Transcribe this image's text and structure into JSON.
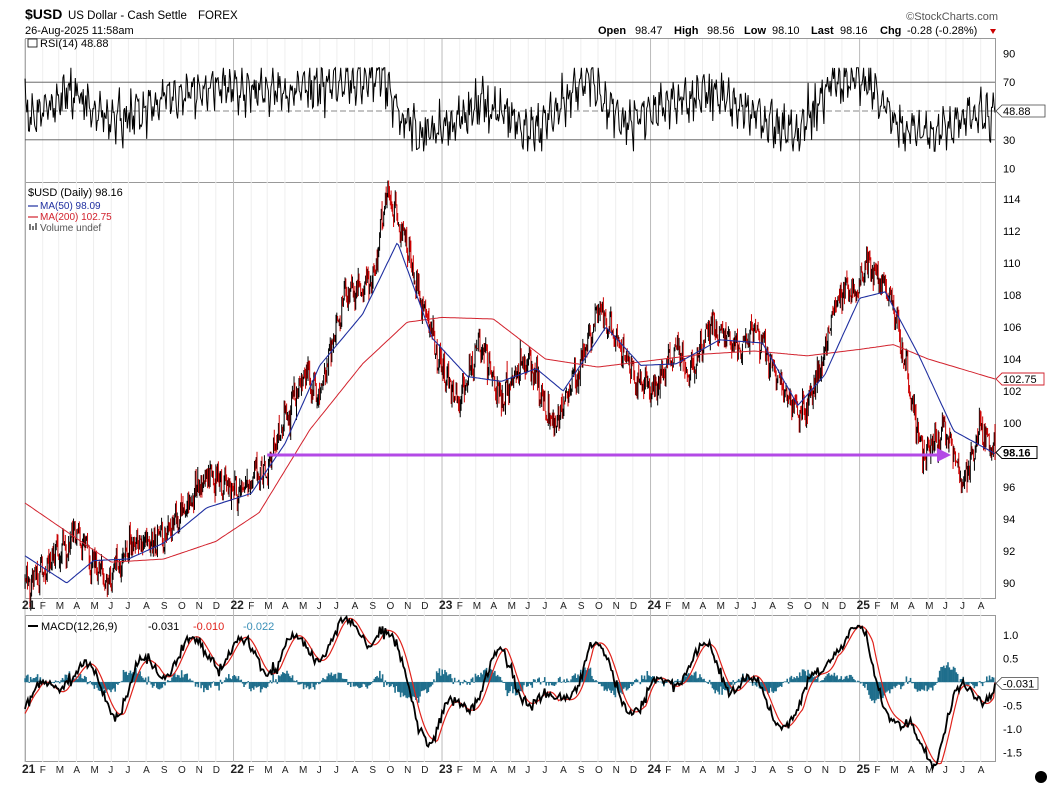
{
  "header": {
    "symbol": "$USD",
    "name": "US Dollar - Cash Settle",
    "exchange": "FOREX",
    "datetime": "26-Aug-2025 11:58am",
    "brand": "©StockCharts.com",
    "open_label": "Open",
    "open": "98.47",
    "high_label": "High",
    "high": "98.56",
    "low_label": "Low",
    "low": "98.10",
    "last_label": "Last",
    "last": "98.16",
    "chg_label": "Chg",
    "chg": "-0.28 (-0.28%)",
    "down_icon": "triangle-down-icon"
  },
  "colors": {
    "price_up": "#000000",
    "price_down": "#cc0000",
    "ma50": "#1f2fa0",
    "ma200": "#d2222d",
    "support_arrow": "#b34ae6",
    "macd": "#000000",
    "macd_signal": "#e0231c",
    "macd_hist": "#1f6e8c",
    "rsi": "#000000"
  },
  "rsi_panel": {
    "legend": "RSI(14) 48.88",
    "current": "48.88",
    "ticks": [
      "90",
      "70",
      "50",
      "30",
      "10"
    ]
  },
  "price_panel": {
    "legend_price": "$USD (Daily) 98.16",
    "legend_ma50": "MA(50) 98.09",
    "legend_ma200": "MA(200) 102.75",
    "legend_volume": "Volume undef",
    "ma200_tag": "102.75",
    "last_tag": "98.16"
  },
  "macd_panel": {
    "legend_name": "MACD(12,26,9)",
    "legend_macd": "-0.031",
    "legend_signal": "-0.010",
    "legend_hist": "-0.022",
    "current": "-0.031",
    "ticks": [
      "1.0",
      "0.5",
      "0.0",
      "-0.5",
      "-1.0",
      "-1.5"
    ]
  },
  "x_axis_labels": [
    "21",
    "F",
    "M",
    "A",
    "M",
    "J",
    "J",
    "A",
    "S",
    "O",
    "N",
    "D",
    "22",
    "F",
    "M",
    "A",
    "M",
    "J",
    "J",
    "A",
    "S",
    "O",
    "N",
    "D",
    "23",
    "F",
    "M",
    "A",
    "M",
    "J",
    "J",
    "A",
    "S",
    "O",
    "N",
    "D",
    "24",
    "F",
    "M",
    "A",
    "M",
    "J",
    "J",
    "A",
    "S",
    "O",
    "N",
    "D",
    "25",
    "F",
    "M",
    "A",
    "M",
    "J",
    "J",
    "A"
  ],
  "chart_data": [
    {
      "type": "line",
      "title": "RSI(14)",
      "ylim": [
        0,
        100
      ],
      "y_ticks": [
        90,
        70,
        50,
        30,
        10
      ],
      "reference_lines": [
        70,
        50,
        30
      ],
      "series": [
        {
          "name": "RSI(14)",
          "x": [
            "2021-01",
            "2021-03",
            "2021-06",
            "2021-09",
            "2021-12",
            "2022-03",
            "2022-06",
            "2022-09",
            "2022-11",
            "2023-01",
            "2023-03",
            "2023-06",
            "2023-09",
            "2023-11",
            "2024-01",
            "2024-04",
            "2024-06",
            "2024-09",
            "2024-11",
            "2025-01",
            "2025-03",
            "2025-05",
            "2025-07",
            "2025-08"
          ],
          "values": [
            48,
            62,
            42,
            60,
            66,
            64,
            68,
            76,
            34,
            40,
            56,
            36,
            74,
            40,
            52,
            64,
            50,
            34,
            72,
            70,
            36,
            34,
            48,
            48.88
          ]
        }
      ],
      "x_range": [
        "2021-01-01",
        "2025-08-26"
      ]
    },
    {
      "type": "line",
      "title": "$USD (Daily)",
      "ylim": [
        89,
        115
      ],
      "y_ticks": [
        90,
        92,
        94,
        96,
        98,
        100,
        102,
        104,
        106,
        108,
        110,
        112,
        114
      ],
      "x_range": [
        "2021-01-01",
        "2025-08-26"
      ],
      "series": [
        {
          "name": "$USD (Daily)",
          "x": [
            "2021-01-01",
            "2021-02-01",
            "2021-03-31",
            "2021-05-25",
            "2021-07-01",
            "2021-09-01",
            "2021-11-24",
            "2021-12-31",
            "2022-02-28",
            "2022-04-30",
            "2022-05-31",
            "2022-07-14",
            "2022-08-31",
            "2022-09-28",
            "2022-10-31",
            "2022-12-31",
            "2023-02-01",
            "2023-03-08",
            "2023-04-15",
            "2023-05-31",
            "2023-07-14",
            "2023-08-31",
            "2023-10-03",
            "2023-11-30",
            "2024-01-01",
            "2024-02-14",
            "2024-03-08",
            "2024-04-16",
            "2024-05-31",
            "2024-07-01",
            "2024-08-31",
            "2024-09-27",
            "2024-11-01",
            "2024-11-22",
            "2024-12-31",
            "2025-01-13",
            "2025-02-28",
            "2025-04-21",
            "2025-05-31",
            "2025-07-01",
            "2025-07-31",
            "2025-08-26"
          ],
          "values": [
            89.9,
            90.6,
            93.2,
            89.8,
            92.3,
            92.8,
            96.8,
            95.8,
            97.0,
            103.0,
            101.8,
            108.2,
            108.7,
            114.5,
            111.0,
            103.5,
            101.5,
            105.1,
            101.6,
            104.2,
            99.6,
            103.6,
            107.2,
            103.1,
            101.8,
            104.9,
            102.9,
            106.3,
            104.6,
            105.8,
            101.4,
            100.4,
            104.5,
            108.0,
            108.5,
            110.0,
            107.5,
            98.0,
            99.4,
            96.5,
            99.8,
            98.16
          ]
        },
        {
          "name": "MA(50)",
          "x": [
            "2021-01-01",
            "2021-03-15",
            "2021-05-01",
            "2021-07-01",
            "2021-09-01",
            "2021-11-15",
            "2022-02-01",
            "2022-04-01",
            "2022-06-01",
            "2022-08-15",
            "2022-10-15",
            "2022-12-15",
            "2023-02-15",
            "2023-04-15",
            "2023-06-15",
            "2023-08-01",
            "2023-10-15",
            "2023-12-15",
            "2024-02-15",
            "2024-05-01",
            "2024-07-15",
            "2024-09-15",
            "2024-11-01",
            "2025-01-01",
            "2025-02-15",
            "2025-04-15",
            "2025-06-15",
            "2025-08-26"
          ],
          "values": [
            91.7,
            90.0,
            91.4,
            91.5,
            92.5,
            94.7,
            95.6,
            98.7,
            103.6,
            106.8,
            111.3,
            105.3,
            102.9,
            102.6,
            103.4,
            102.0,
            106.0,
            103.6,
            103.7,
            105.2,
            105.0,
            101.1,
            103.0,
            107.8,
            108.2,
            104.2,
            99.5,
            98.09
          ]
        },
        {
          "name": "MA(200)",
          "x": [
            "2021-01-01",
            "2021-06-01",
            "2021-09-01",
            "2021-12-01",
            "2022-02-15",
            "2022-05-15",
            "2022-08-15",
            "2022-11-01",
            "2023-01-01",
            "2023-04-01",
            "2023-07-01",
            "2023-10-01",
            "2024-01-01",
            "2024-04-01",
            "2024-07-01",
            "2024-10-01",
            "2025-01-01",
            "2025-03-01",
            "2025-05-01",
            "2025-08-26"
          ],
          "values": [
            95.0,
            91.3,
            91.5,
            92.6,
            94.4,
            99.6,
            103.7,
            106.3,
            106.6,
            106.5,
            104.0,
            103.5,
            103.9,
            104.3,
            104.5,
            104.2,
            104.6,
            104.9,
            104.0,
            102.75
          ]
        }
      ],
      "annotations": [
        {
          "type": "arrow",
          "from": {
            "x": "2022-03-01",
            "y": 98.0
          },
          "to": {
            "x": "2025-06-10",
            "y": 98.0
          }
        }
      ],
      "legend": "top-left"
    },
    {
      "type": "line",
      "title": "MACD(12,26,9)",
      "ylim": [
        -1.7,
        1.4
      ],
      "y_ticks": [
        1.0,
        0.5,
        0.0,
        -0.5,
        -1.0,
        -1.5
      ],
      "x_range": [
        "2021-01-01",
        "2025-08-26"
      ],
      "series": [
        {
          "name": "MACD",
          "x": [
            "2021-01",
            "2021-03",
            "2021-06",
            "2021-08",
            "2021-11",
            "2022-03",
            "2022-07",
            "2022-09",
            "2022-12",
            "2023-02",
            "2023-04",
            "2023-07",
            "2023-09",
            "2023-12",
            "2024-02",
            "2024-04",
            "2024-07",
            "2024-09",
            "2024-11",
            "2025-01",
            "2025-03",
            "2025-05",
            "2025-06",
            "2025-08"
          ],
          "values": [
            -0.5,
            0.3,
            -0.4,
            0.4,
            0.7,
            0.5,
            1.0,
            1.2,
            -1.2,
            -0.3,
            0.4,
            -0.7,
            0.7,
            -0.6,
            0.3,
            0.5,
            -0.4,
            -0.8,
            0.9,
            0.8,
            -1.2,
            -1.4,
            -0.5,
            -0.031
          ]
        },
        {
          "name": "Signal",
          "x": [
            "2021-01",
            "2021-03",
            "2021-06",
            "2021-08",
            "2021-11",
            "2022-03",
            "2022-07",
            "2022-09",
            "2022-12",
            "2023-02",
            "2023-04",
            "2023-07",
            "2023-09",
            "2023-12",
            "2024-02",
            "2024-04",
            "2024-07",
            "2024-09",
            "2024-11",
            "2025-01",
            "2025-03",
            "2025-05",
            "2025-06",
            "2025-08"
          ],
          "values": [
            -0.4,
            0.2,
            -0.3,
            0.3,
            0.6,
            0.4,
            0.9,
            1.0,
            -1.0,
            -0.4,
            0.3,
            -0.6,
            0.6,
            -0.5,
            0.2,
            0.4,
            -0.3,
            -0.7,
            0.8,
            0.7,
            -1.0,
            -1.2,
            -0.4,
            -0.01
          ]
        },
        {
          "name": "Histogram",
          "x": [
            "2025-08"
          ],
          "values": [
            -0.022
          ]
        }
      ]
    }
  ]
}
